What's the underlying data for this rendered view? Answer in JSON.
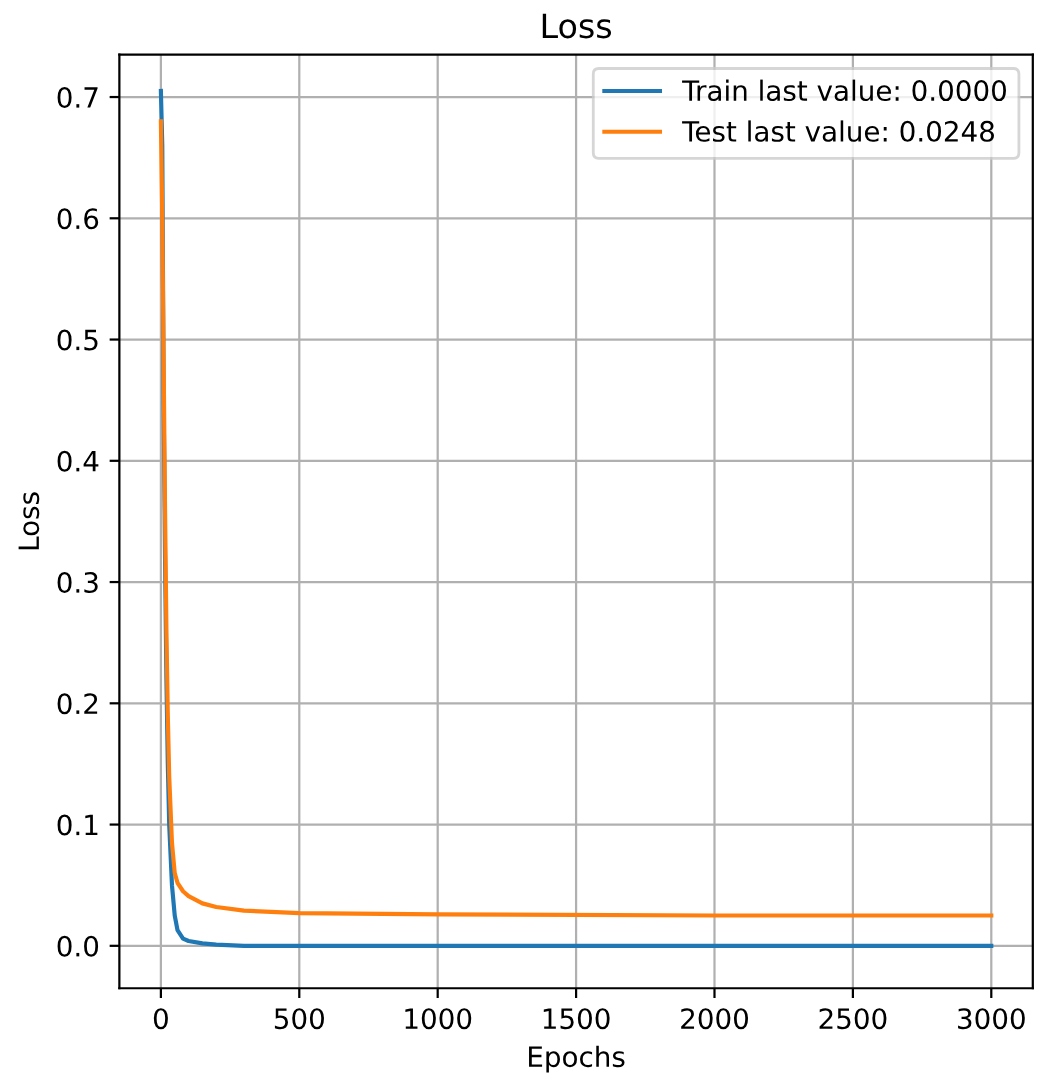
{
  "chart_data": {
    "type": "line",
    "title": "Loss",
    "xlabel": "Epochs",
    "ylabel": "Loss",
    "xlim": [
      -150,
      3150
    ],
    "ylim": [
      -0.035,
      0.735
    ],
    "xticks": [
      0,
      500,
      1000,
      1500,
      2000,
      2500,
      3000
    ],
    "yticks": [
      {
        "value": 0,
        "label": "0.0"
      },
      0.1,
      0.2,
      0.3,
      0.4,
      0.5,
      0.6,
      0.7
    ],
    "grid": true,
    "legend": "top right",
    "series": [
      {
        "name": "Train last value: 0.0000",
        "color": "#1f77b4",
        "x": [
          0,
          5,
          10,
          15,
          20,
          25,
          30,
          40,
          50,
          60,
          80,
          100,
          150,
          200,
          300,
          500,
          1000,
          2000,
          3000
        ],
        "values": [
          0.705,
          0.66,
          0.45,
          0.32,
          0.22,
          0.15,
          0.1,
          0.05,
          0.025,
          0.013,
          0.006,
          0.004,
          0.002,
          0.001,
          0.0,
          0.0,
          0.0,
          0.0,
          0.0
        ]
      },
      {
        "name": "Test last value: 0.0248",
        "color": "#ff7f0e",
        "x": [
          0,
          5,
          10,
          15,
          20,
          25,
          30,
          40,
          50,
          60,
          80,
          100,
          150,
          200,
          300,
          500,
          1000,
          2000,
          3000
        ],
        "values": [
          0.68,
          0.6,
          0.48,
          0.36,
          0.26,
          0.19,
          0.14,
          0.085,
          0.06,
          0.052,
          0.045,
          0.041,
          0.035,
          0.032,
          0.029,
          0.027,
          0.026,
          0.025,
          0.025
        ]
      }
    ]
  }
}
